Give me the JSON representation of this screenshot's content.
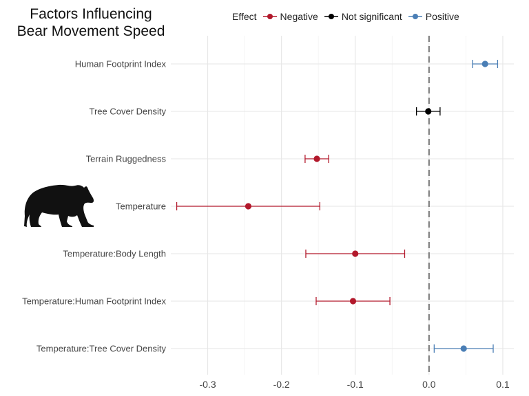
{
  "chart_data": {
    "type": "forest",
    "title_lines": [
      "Factors Influencing",
      "Bear Movement Speed"
    ],
    "legend": {
      "title": "Effect",
      "entries": [
        {
          "label": "Negative",
          "color": "#b2182b"
        },
        {
          "label": "Not significant",
          "color": "#000000"
        },
        {
          "label": "Positive",
          "color": "#4a7eb5"
        }
      ]
    },
    "xlim": [
      -0.35,
      0.115
    ],
    "xticks": [
      -0.3,
      -0.2,
      -0.1,
      0.0,
      0.1
    ],
    "xtick_labels": [
      "-0.3",
      "-0.2",
      "-0.1",
      "0.0",
      "0.1"
    ],
    "reference_line": 0.0,
    "terms": [
      {
        "label": "Human Footprint Index",
        "estimate": 0.076,
        "lower": 0.059,
        "upper": 0.093,
        "effect": "Positive"
      },
      {
        "label": "Tree Cover Density",
        "estimate": -0.001,
        "lower": -0.017,
        "upper": 0.015,
        "effect": "Not significant"
      },
      {
        "label": "Terrain Ruggedness",
        "estimate": -0.152,
        "lower": -0.168,
        "upper": -0.136,
        "effect": "Negative"
      },
      {
        "label": "Temperature",
        "estimate": -0.245,
        "lower": -0.342,
        "upper": -0.148,
        "effect": "Negative"
      },
      {
        "label": "Temperature:Body Length",
        "estimate": -0.1,
        "lower": -0.167,
        "upper": -0.033,
        "effect": "Negative"
      },
      {
        "label": "Temperature:Human Footprint Index",
        "estimate": -0.103,
        "lower": -0.153,
        "upper": -0.053,
        "effect": "Negative"
      },
      {
        "label": "Temperature:Tree Cover Density",
        "estimate": 0.047,
        "lower": 0.007,
        "upper": 0.087,
        "effect": "Positive"
      }
    ]
  }
}
